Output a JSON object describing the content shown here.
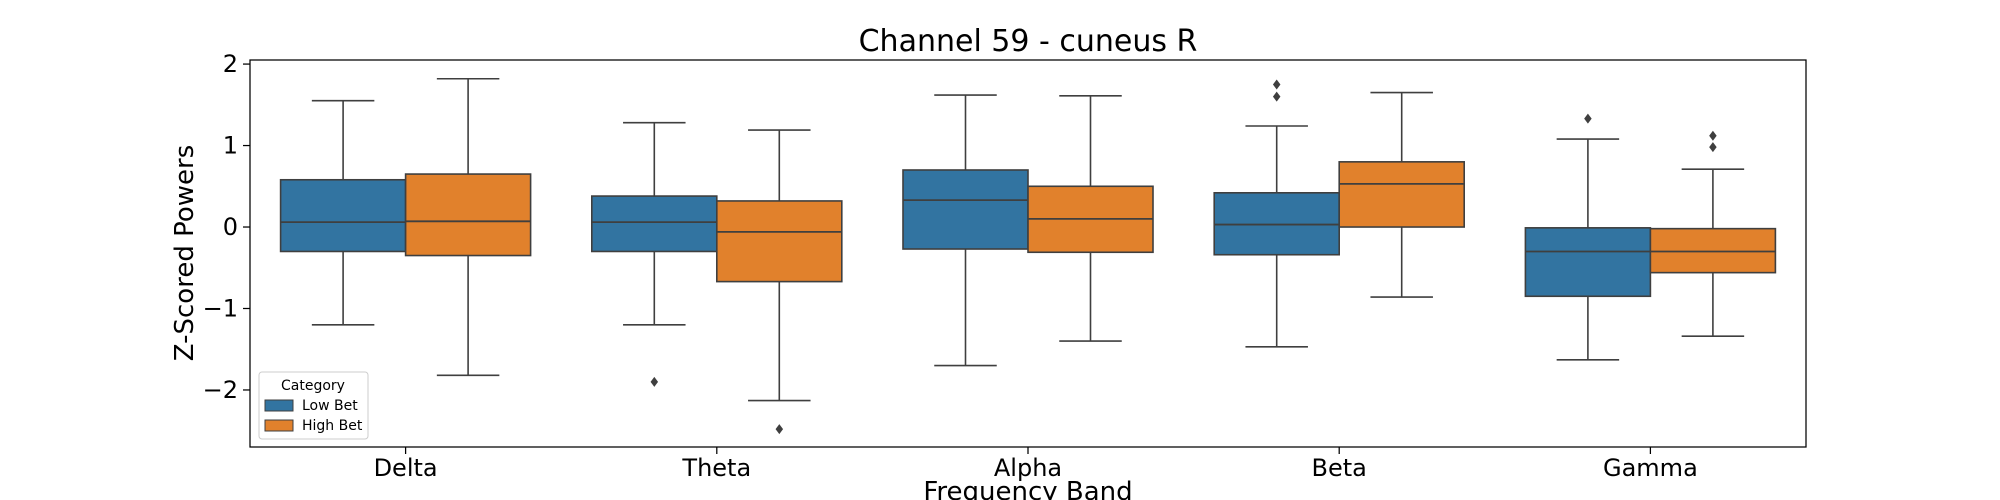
{
  "chart_data": {
    "type": "boxplot",
    "title": "Channel 59 - cuneus R",
    "xlabel": "Frequency Band",
    "ylabel": "Z-Scored Powers",
    "ylim": [
      -2.7,
      2.05
    ],
    "yticks": [
      2,
      1,
      0,
      -1,
      -2
    ],
    "ytick_labels": [
      "2",
      "1",
      "0",
      "−1",
      "−2"
    ],
    "categories": [
      "Delta",
      "Theta",
      "Alpha",
      "Beta",
      "Gamma"
    ],
    "grid": false,
    "legend": {
      "title": "Category",
      "placement": "lower-left"
    },
    "series": [
      {
        "name": "Low Bet",
        "color": "#3274a1",
        "boxes": [
          {
            "whislo": -1.2,
            "q1": -0.3,
            "med": 0.06,
            "q3": 0.58,
            "whishi": 1.55,
            "fliers": []
          },
          {
            "whislo": -1.2,
            "q1": -0.3,
            "med": 0.06,
            "q3": 0.38,
            "whishi": 1.28,
            "fliers": [
              -1.9
            ]
          },
          {
            "whislo": -1.7,
            "q1": -0.27,
            "med": 0.33,
            "q3": 0.7,
            "whishi": 1.62,
            "fliers": []
          },
          {
            "whislo": -1.47,
            "q1": -0.34,
            "med": 0.03,
            "q3": 0.42,
            "whishi": 1.24,
            "fliers": [
              1.6,
              1.75
            ]
          },
          {
            "whislo": -1.63,
            "q1": -0.85,
            "med": -0.3,
            "q3": -0.01,
            "whishi": 1.08,
            "fliers": [
              1.33
            ]
          }
        ]
      },
      {
        "name": "High Bet",
        "color": "#e1812c",
        "boxes": [
          {
            "whislo": -1.82,
            "q1": -0.35,
            "med": 0.07,
            "q3": 0.65,
            "whishi": 1.82,
            "fliers": []
          },
          {
            "whislo": -2.13,
            "q1": -0.67,
            "med": -0.06,
            "q3": 0.32,
            "whishi": 1.19,
            "fliers": [
              -2.48
            ]
          },
          {
            "whislo": -1.4,
            "q1": -0.31,
            "med": 0.1,
            "q3": 0.5,
            "whishi": 1.61,
            "fliers": []
          },
          {
            "whislo": -0.86,
            "q1": 0.0,
            "med": 0.53,
            "q3": 0.8,
            "whishi": 1.65,
            "fliers": []
          },
          {
            "whislo": -1.34,
            "q1": -0.56,
            "med": -0.3,
            "q3": -0.02,
            "whishi": 0.71,
            "fliers": [
              0.98,
              1.12
            ]
          }
        ]
      }
    ]
  }
}
